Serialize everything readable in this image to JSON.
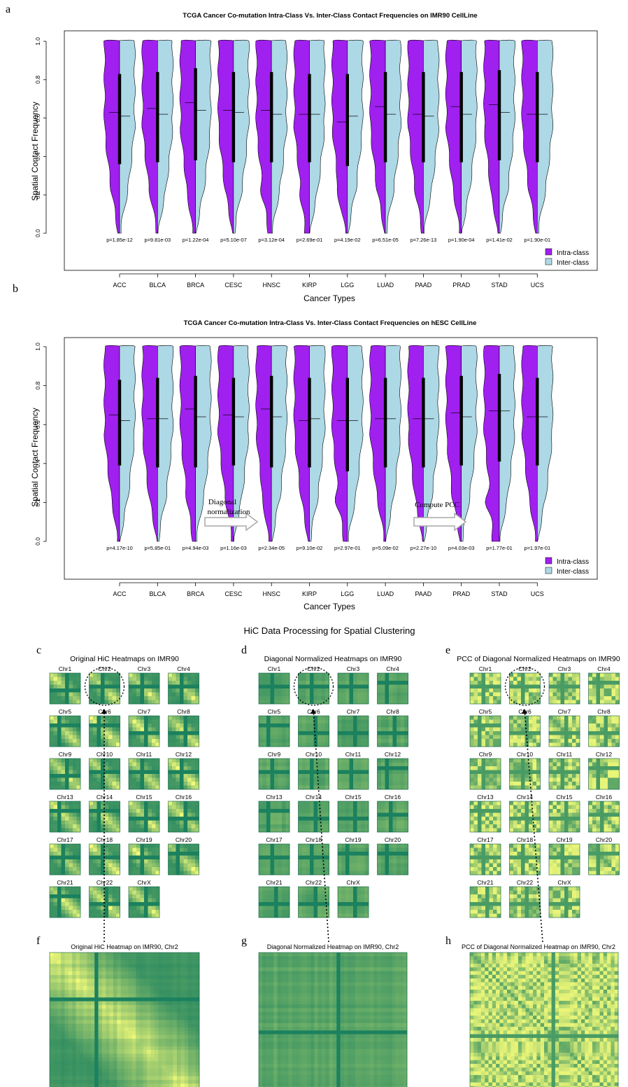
{
  "colors": {
    "intra": "#a020f0",
    "inter": "#add8e6",
    "hic_dark": "#0f7a5c",
    "hic_light": "#f5fc7a"
  },
  "panel_letters": [
    "a",
    "b",
    "c",
    "d",
    "e",
    "f",
    "g",
    "h"
  ],
  "chart_data": [
    {
      "type": "violin",
      "panel": "a",
      "title": "TCGA Cancer Co-mutation Intra-Class Vs. Inter-Class Contact Frequencies on IMR90 CellLine",
      "xlabel": "Cancer Types",
      "ylabel": "Spatial Contact Frequency",
      "ylim": [
        0,
        1
      ],
      "yticks": [
        "0.0",
        "0.2",
        "0.4",
        "0.6",
        "0.8",
        "1.0"
      ],
      "categories": [
        "ACC",
        "BLCA",
        "BRCA",
        "CESC",
        "HNSC",
        "KIRP",
        "LGG",
        "LUAD",
        "PAAD",
        "PRAD",
        "STAD",
        "UCS"
      ],
      "series": [
        {
          "name": "Intra-class",
          "color": "#a020f0",
          "medians": [
            0.63,
            0.65,
            0.68,
            0.64,
            0.64,
            0.62,
            0.58,
            0.66,
            0.62,
            0.66,
            0.67,
            0.62
          ]
        },
        {
          "name": "Inter-class",
          "color": "#add8e6",
          "medians": [
            0.61,
            0.62,
            0.64,
            0.63,
            0.62,
            0.62,
            0.61,
            0.62,
            0.61,
            0.62,
            0.63,
            0.62
          ]
        }
      ],
      "box_ranges": [
        [
          0.36,
          0.83
        ],
        [
          0.37,
          0.84
        ],
        [
          0.38,
          0.86
        ],
        [
          0.37,
          0.84
        ],
        [
          0.37,
          0.84
        ],
        [
          0.37,
          0.83
        ],
        [
          0.35,
          0.83
        ],
        [
          0.37,
          0.84
        ],
        [
          0.37,
          0.84
        ],
        [
          0.37,
          0.84
        ],
        [
          0.38,
          0.85
        ],
        [
          0.37,
          0.84
        ]
      ],
      "p_values": [
        "p=1.85e-12",
        "p=9.81e-03",
        "p=1.22e-04",
        "p=5.10e-07",
        "p=3.12e-04",
        "p=2.69e-01",
        "p=4.19e-02",
        "p=6.51e-05",
        "p=7.26e-13",
        "p=1.90e-04",
        "p=1.41e-02",
        "p=1.90e-01"
      ],
      "legend": [
        "Intra-class",
        "Inter-class"
      ],
      "legend_position": "bottom-right"
    },
    {
      "type": "violin",
      "panel": "b",
      "title": "TCGA Cancer Co-mutation Intra-Class Vs. Inter-Class Contact Frequencies on hESC CellLine",
      "xlabel": "Cancer Types",
      "ylabel": "Spatial Contact Frequency",
      "ylim": [
        0,
        1
      ],
      "yticks": [
        "0.0",
        "0.2",
        "0.4",
        "0.6",
        "0.8",
        "1.0"
      ],
      "categories": [
        "ACC",
        "BLCA",
        "BRCA",
        "CESC",
        "HNSC",
        "KIRP",
        "LGG",
        "LUAD",
        "PAAD",
        "PRAD",
        "STAD",
        "UCS"
      ],
      "series": [
        {
          "name": "Intra-class",
          "color": "#a020f0",
          "medians": [
            0.65,
            0.63,
            0.68,
            0.65,
            0.68,
            0.62,
            0.62,
            0.63,
            0.63,
            0.66,
            0.67,
            0.64
          ]
        },
        {
          "name": "Inter-class",
          "color": "#add8e6",
          "medians": [
            0.62,
            0.63,
            0.64,
            0.64,
            0.64,
            0.63,
            0.62,
            0.63,
            0.63,
            0.64,
            0.67,
            0.64
          ]
        }
      ],
      "box_ranges": [
        [
          0.39,
          0.83
        ],
        [
          0.38,
          0.84
        ],
        [
          0.38,
          0.85
        ],
        [
          0.39,
          0.84
        ],
        [
          0.38,
          0.85
        ],
        [
          0.38,
          0.84
        ],
        [
          0.36,
          0.84
        ],
        [
          0.38,
          0.84
        ],
        [
          0.38,
          0.84
        ],
        [
          0.39,
          0.85
        ],
        [
          0.41,
          0.86
        ],
        [
          0.39,
          0.84
        ]
      ],
      "p_values": [
        "p=4.17e-10",
        "p=5.85e-01",
        "p=4.94e-03",
        "p=1.16e-03",
        "p=2.34e-05",
        "p=9.10e-02",
        "p=2.97e-01",
        "p=5.09e-02",
        "p=2.27e-10",
        "p=4.03e-03",
        "p=1.77e-01",
        "p=1.97e-01"
      ],
      "legend": [
        "Intra-class",
        "Inter-class"
      ],
      "legend_position": "bottom-right"
    }
  ],
  "hic": {
    "section_title": "HiC Data Processing for Spatial Clustering",
    "panel_titles": {
      "c": "Original HiC Heatmaps on IMR90",
      "d": "Diagonal Normalized Heatmaps on IMR90",
      "e": "PCC of Diagonal Normalized Heatmaps on IMR90",
      "f": "Original HiC Heatmap on IMR90, Chr2",
      "g": "Diagonal Normalized Heatmap on IMR90, Chr2",
      "h": "PCC of Diagonal Normalized Heatmap on IMR90, Chr2"
    },
    "chromosomes": [
      "Chr1",
      "Chr2",
      "Chr3",
      "Chr4",
      "Chr5",
      "Chr6",
      "Chr7",
      "Chr8",
      "Chr9",
      "Chr10",
      "Chr11",
      "Chr12",
      "Chr13",
      "Chr14",
      "Chr15",
      "Chr16",
      "Chr17",
      "Chr18",
      "Chr19",
      "Chr20",
      "Chr21",
      "Chr22",
      "ChrX"
    ],
    "highlighted": "Chr2",
    "arrow1_label": [
      "Diagonal",
      "normalization"
    ],
    "arrow2_label": "Compute PCC"
  }
}
